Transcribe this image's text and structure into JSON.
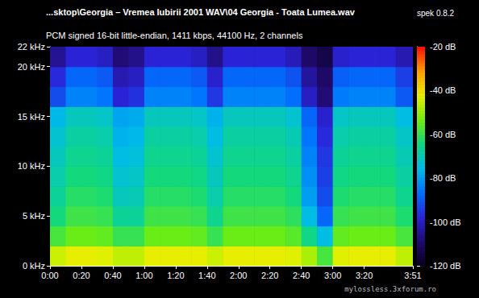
{
  "chart_data": {
    "type": "heatmap",
    "title": "...sktop\\Georgia – Vremea Iubirii 2001 WAV\\04 Georgia - Toata Lumea.wav",
    "subtitle": "PCM signed 16-bit little-endian, 1411 kbps, 44100 Hz, 2 channels",
    "annotations": [
      "spek 0.8.2",
      "mylossless.3xforum.ro"
    ],
    "xlim": [
      0,
      231
    ],
    "xticks": [
      {
        "value": 0,
        "label": "0:00"
      },
      {
        "value": 20,
        "label": "0:20"
      },
      {
        "value": 40,
        "label": "0:40"
      },
      {
        "value": 60,
        "label": "1:00"
      },
      {
        "value": 80,
        "label": "1:20"
      },
      {
        "value": 100,
        "label": "1:40"
      },
      {
        "value": 120,
        "label": "2:00"
      },
      {
        "value": 140,
        "label": "2:20"
      },
      {
        "value": 160,
        "label": "2:40"
      },
      {
        "value": 180,
        "label": "3:00"
      },
      {
        "value": 200,
        "label": "3:20"
      },
      {
        "value": 231,
        "label": "3:51"
      }
    ],
    "ylim": [
      0,
      22
    ],
    "yticks": [
      {
        "value": 0,
        "label": "0 kHz"
      },
      {
        "value": 5,
        "label": "5 kHz"
      },
      {
        "value": 10,
        "label": "10 kHz"
      },
      {
        "value": 15,
        "label": "15 kHz"
      },
      {
        "value": 20,
        "label": "20 kHz"
      },
      {
        "value": 22,
        "label": "22 kHz"
      }
    ],
    "x_bins": [
      0,
      10,
      20,
      30,
      40,
      50,
      60,
      70,
      80,
      90,
      100,
      110,
      120,
      130,
      140,
      150,
      160,
      170,
      180,
      190,
      200,
      210,
      220,
      231
    ],
    "y_bins": [
      0,
      2,
      4,
      6,
      8,
      10,
      12,
      14,
      16,
      18,
      20,
      22
    ],
    "values": [
      [
        -45,
        -42,
        -42,
        -43,
        -46,
        -46,
        -42,
        -42,
        -42,
        -42,
        -45,
        -42,
        -42,
        -42,
        -42,
        -43,
        -48,
        -58,
        -43,
        -42,
        -42,
        -42,
        -46
      ],
      [
        -58,
        -54,
        -54,
        -55,
        -60,
        -60,
        -54,
        -54,
        -54,
        -55,
        -60,
        -54,
        -54,
        -54,
        -54,
        -56,
        -65,
        -75,
        -55,
        -54,
        -54,
        -54,
        -58
      ],
      [
        -64,
        -59,
        -59,
        -60,
        -67,
        -67,
        -59,
        -59,
        -59,
        -60,
        -66,
        -59,
        -59,
        -59,
        -59,
        -61,
        -75,
        -88,
        -60,
        -59,
        -59,
        -59,
        -63
      ],
      [
        -67,
        -62,
        -62,
        -63,
        -71,
        -70,
        -62,
        -62,
        -62,
        -63,
        -69,
        -62,
        -62,
        -62,
        -62,
        -64,
        -80,
        -92,
        -63,
        -62,
        -62,
        -62,
        -66
      ],
      [
        -69,
        -64,
        -64,
        -65,
        -73,
        -72,
        -64,
        -64,
        -64,
        -65,
        -71,
        -64,
        -64,
        -64,
        -64,
        -66,
        -82,
        -94,
        -65,
        -64,
        -64,
        -64,
        -68
      ],
      [
        -71,
        -66,
        -66,
        -67,
        -75,
        -74,
        -66,
        -66,
        -66,
        -67,
        -73,
        -66,
        -66,
        -66,
        -66,
        -68,
        -84,
        -95,
        -67,
        -66,
        -66,
        -66,
        -70
      ],
      [
        -73,
        -68,
        -68,
        -69,
        -77,
        -76,
        -68,
        -68,
        -68,
        -69,
        -75,
        -68,
        -68,
        -68,
        -68,
        -70,
        -86,
        -97,
        -69,
        -68,
        -68,
        -68,
        -72
      ],
      [
        -76,
        -71,
        -71,
        -72,
        -79,
        -78,
        -71,
        -71,
        -71,
        -72,
        -77,
        -71,
        -71,
        -71,
        -71,
        -73,
        -88,
        -99,
        -72,
        -71,
        -71,
        -71,
        -75
      ],
      [
        -92,
        -84,
        -84,
        -86,
        -98,
        -96,
        -84,
        -84,
        -84,
        -86,
        -95,
        -84,
        -84,
        -84,
        -84,
        -87,
        -100,
        -108,
        -85,
        -84,
        -84,
        -84,
        -90
      ],
      [
        -97,
        -88,
        -88,
        -90,
        -102,
        -100,
        -88,
        -88,
        -88,
        -90,
        -99,
        -88,
        -88,
        -88,
        -88,
        -91,
        -104,
        -110,
        -89,
        -88,
        -88,
        -88,
        -94
      ],
      [
        -105,
        -98,
        -98,
        -100,
        -108,
        -106,
        -98,
        -98,
        -98,
        -100,
        -106,
        -98,
        -98,
        -98,
        -98,
        -101,
        -110,
        -114,
        -99,
        -98,
        -98,
        -98,
        -102
      ]
    ],
    "colorbar": {
      "range": [
        -120,
        -20
      ],
      "ticks": [
        {
          "value": -20,
          "label": "-20 dB"
        },
        {
          "value": -40,
          "label": "-40 dB"
        },
        {
          "value": -60,
          "label": "-60 dB"
        },
        {
          "value": -80,
          "label": "-80 dB"
        },
        {
          "value": -100,
          "label": "-100 dB"
        },
        {
          "value": -120,
          "label": "-120 dB"
        }
      ]
    }
  }
}
